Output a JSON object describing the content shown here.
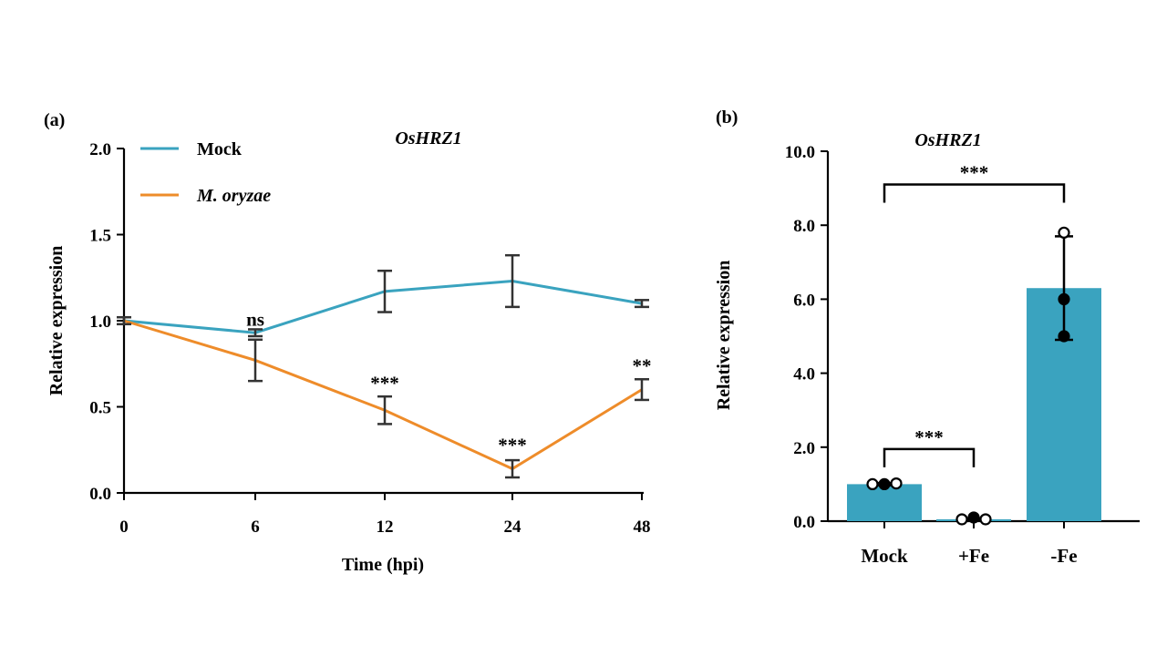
{
  "chart_data": [
    {
      "panel_label": "(a)",
      "type": "line",
      "title": "OsHRZ1",
      "xlabel": "Time (hpi)",
      "ylabel": "Relative expression",
      "x": [
        "0",
        "6",
        "12",
        "24",
        "48"
      ],
      "ylim": [
        0,
        2.0
      ],
      "yticks": [
        "0.0",
        "0.5",
        "1.0",
        "1.5",
        "2.0"
      ],
      "legend_position": "top-left",
      "series": [
        {
          "name": "Mock",
          "color": "#3aa3bf",
          "values": [
            1.0,
            0.93,
            1.17,
            1.23,
            1.1
          ],
          "errors": [
            0.02,
            0.02,
            0.12,
            0.15,
            0.02
          ]
        },
        {
          "name": "M. oryzae",
          "color": "#ee8c2a",
          "values": [
            1.0,
            0.77,
            0.48,
            0.14,
            0.6
          ],
          "errors": [
            0.02,
            0.12,
            0.08,
            0.05,
            0.06
          ]
        }
      ],
      "annotations": [
        {
          "x": "6",
          "y": 0.97,
          "text": "ns"
        },
        {
          "x": "12",
          "y": 0.6,
          "text": "***"
        },
        {
          "x": "24",
          "y": 0.24,
          "text": "***"
        },
        {
          "x": "48",
          "y": 0.7,
          "text": "**"
        }
      ]
    },
    {
      "panel_label": "(b)",
      "type": "bar",
      "title": "OsHRZ1",
      "ylabel": "Relative expression",
      "xlabel": "",
      "categories": [
        "Mock",
        "+Fe",
        "-Fe"
      ],
      "values": [
        1.0,
        0.05,
        6.3
      ],
      "errors": [
        0.03,
        0.03,
        1.4
      ],
      "points": [
        [
          1.0,
          1.0,
          1.02
        ],
        [
          0.05,
          0.1,
          0.05
        ],
        [
          7.8,
          6.0,
          5.0
        ]
      ],
      "bar_color": "#3aa3bf",
      "ylim": [
        0,
        10.0
      ],
      "yticks": [
        "0.0",
        "2.0",
        "4.0",
        "6.0",
        "8.0",
        "10.0"
      ],
      "comparisons": [
        {
          "from": "Mock",
          "to": "-Fe",
          "y": 9.1,
          "text": "***"
        },
        {
          "from": "Mock",
          "to": "+Fe",
          "y": 1.95,
          "text": "***"
        }
      ]
    }
  ]
}
